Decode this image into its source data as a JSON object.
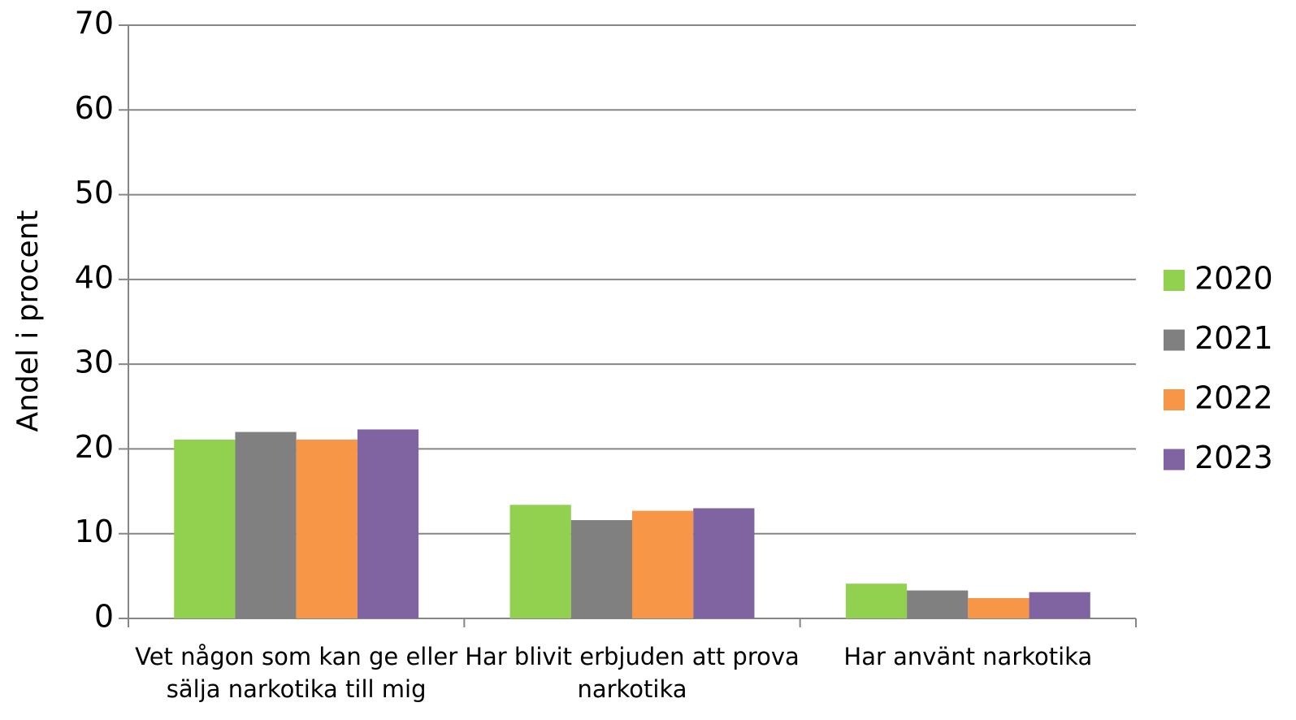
{
  "chart_data": {
    "type": "bar",
    "y_label": "Andel i procent",
    "categories": [
      "Vet någon som kan ge eller sälja narkotika till mig",
      "Har blivit erbjuden att prova narkotika",
      "Har använt narkotika"
    ],
    "series": [
      {
        "name": "2020",
        "color": "#92d050",
        "values": [
          21.1,
          13.4,
          4.1
        ]
      },
      {
        "name": "2021",
        "color": "#808080",
        "values": [
          22.0,
          11.6,
          3.3
        ]
      },
      {
        "name": "2022",
        "color": "#f79646",
        "values": [
          21.1,
          12.7,
          2.4
        ]
      },
      {
        "name": "2023",
        "color": "#8064a2",
        "values": [
          22.3,
          13.0,
          3.1
        ]
      }
    ],
    "ylim": [
      0,
      70
    ],
    "yticks": [
      0,
      10,
      20,
      30,
      40,
      50,
      60,
      70
    ],
    "grid": true,
    "legend": "right"
  }
}
